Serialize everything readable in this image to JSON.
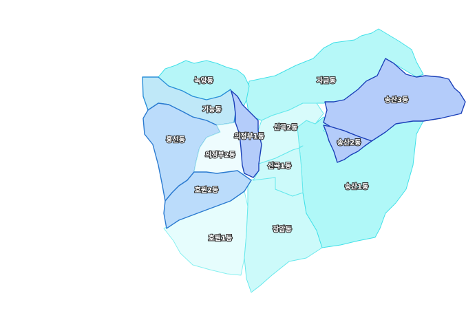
{
  "map": {
    "districts": [
      {
        "key": "hoewon1",
        "name": "호원1동",
        "fill": "#e6fdfd",
        "stroke": "#88f0f0"
      },
      {
        "key": "jangam",
        "name": "장암동",
        "fill": "#ccfafa",
        "stroke": "#66e8ec"
      },
      {
        "key": "songsan1",
        "name": "송산1동",
        "fill": "#b0f8f8",
        "stroke": "#40e0e8"
      },
      {
        "key": "jageum",
        "name": "자금동",
        "fill": "#b6f8f8",
        "stroke": "#40e0e8"
      },
      {
        "key": "singok1",
        "name": "신곡1동",
        "fill": "#ccfafa",
        "stroke": "#66e8ec"
      },
      {
        "key": "singok2",
        "name": "신곡2동",
        "fill": "#d8fbfb",
        "stroke": "#66e8ec"
      },
      {
        "key": "nogyang",
        "name": "녹양동",
        "fill": "#b6f6f8",
        "stroke": "#40e0e8"
      },
      {
        "key": "ganeung",
        "name": "가능동",
        "fill": "#bfe8f8",
        "stroke": "#2a8fd8"
      },
      {
        "key": "heungseon",
        "name": "흥선동",
        "fill": "#bbdcfb",
        "stroke": "#2a7ad0"
      },
      {
        "key": "uijeongbu2",
        "name": "의정부2동",
        "fill": "#eefcfe",
        "stroke": "#aaeef0"
      },
      {
        "key": "hoewon2",
        "name": "호원2동",
        "fill": "#bbdcfb",
        "stroke": "#2a7ad0"
      },
      {
        "key": "uijeongbu1",
        "name": "의정부1동",
        "fill": "#b4ccfa",
        "stroke": "#1a3fb8"
      },
      {
        "key": "songsan3",
        "name": "송산3동",
        "fill": "#b4ccfa",
        "stroke": "#1a3fb8"
      },
      {
        "key": "songsan2",
        "name": "송산2동",
        "fill": "#b4ccfa",
        "stroke": "#1a3fb8"
      }
    ]
  }
}
